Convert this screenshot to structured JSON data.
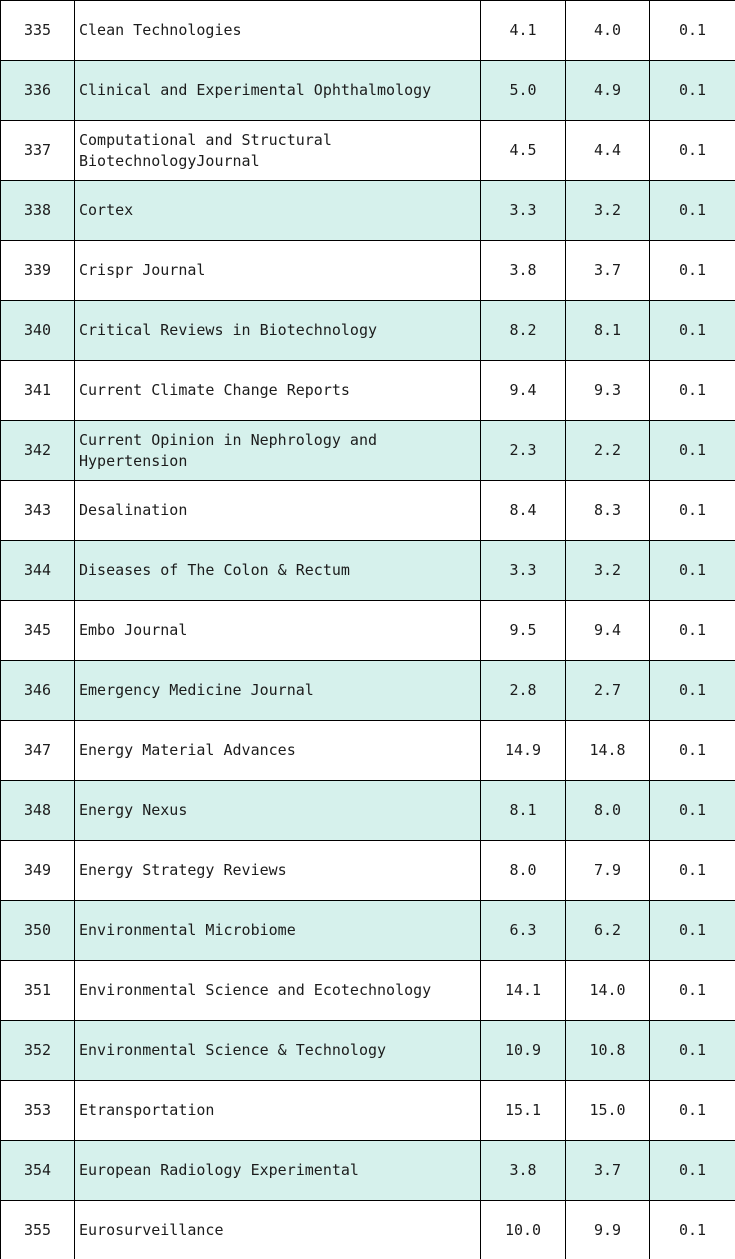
{
  "styles": {
    "row_alternate_bg": "#d6f1ec",
    "row_plain_bg": "#ffffff",
    "border_color": "#000000",
    "text_color": "#1c1c1c"
  },
  "chart_data": {
    "type": "table",
    "header_visible": false,
    "columns_visible": 5,
    "rows": [
      {
        "no": "335",
        "journal": "Clean Technologies",
        "value1": "4.1",
        "value2": "4.0",
        "value3": "0.1"
      },
      {
        "no": "336",
        "journal": "Clinical and Experimental Ophthalmology",
        "value1": "5.0",
        "value2": "4.9",
        "value3": "0.1"
      },
      {
        "no": "337",
        "journal": "Computational and Structural BiotechnologyJournal",
        "value1": "4.5",
        "value2": "4.4",
        "value3": "0.1"
      },
      {
        "no": "338",
        "journal": "Cortex",
        "value1": "3.3",
        "value2": "3.2",
        "value3": "0.1"
      },
      {
        "no": "339",
        "journal": "Crispr Journal",
        "value1": "3.8",
        "value2": "3.7",
        "value3": "0.1"
      },
      {
        "no": "340",
        "journal": "Critical Reviews in Biotechnology",
        "value1": "8.2",
        "value2": "8.1",
        "value3": "0.1"
      },
      {
        "no": "341",
        "journal": "Current Climate Change Reports",
        "value1": "9.4",
        "value2": "9.3",
        "value3": "0.1"
      },
      {
        "no": "342",
        "journal": "Current Opinion in Nephrology and Hypertension",
        "value1": "2.3",
        "value2": "2.2",
        "value3": "0.1"
      },
      {
        "no": "343",
        "journal": "Desalination",
        "value1": "8.4",
        "value2": "8.3",
        "value3": "0.1"
      },
      {
        "no": "344",
        "journal": "Diseases of The Colon & Rectum",
        "value1": "3.3",
        "value2": "3.2",
        "value3": "0.1"
      },
      {
        "no": "345",
        "journal": "Embo Journal",
        "value1": "9.5",
        "value2": "9.4",
        "value3": "0.1"
      },
      {
        "no": "346",
        "journal": "Emergency Medicine Journal",
        "value1": "2.8",
        "value2": "2.7",
        "value3": "0.1"
      },
      {
        "no": "347",
        "journal": "Energy Material Advances",
        "value1": "14.9",
        "value2": "14.8",
        "value3": "0.1"
      },
      {
        "no": "348",
        "journal": "Energy Nexus",
        "value1": "8.1",
        "value2": "8.0",
        "value3": "0.1"
      },
      {
        "no": "349",
        "journal": "Energy Strategy Reviews",
        "value1": "8.0",
        "value2": "7.9",
        "value3": "0.1"
      },
      {
        "no": "350",
        "journal": "Environmental Microbiome",
        "value1": "6.3",
        "value2": "6.2",
        "value3": "0.1"
      },
      {
        "no": "351",
        "journal": "Environmental Science and Ecotechnology",
        "value1": "14.1",
        "value2": "14.0",
        "value3": "0.1"
      },
      {
        "no": "352",
        "journal": "Environmental Science & Technology",
        "value1": "10.9",
        "value2": "10.8",
        "value3": "0.1"
      },
      {
        "no": "353",
        "journal": "Etransportation",
        "value1": "15.1",
        "value2": "15.0",
        "value3": "0.1"
      },
      {
        "no": "354",
        "journal": "European Radiology Experimental",
        "value1": "3.8",
        "value2": "3.7",
        "value3": "0.1"
      },
      {
        "no": "355",
        "journal": "Eurosurveillance",
        "value1": "10.0",
        "value2": "9.9",
        "value3": "0.1"
      }
    ]
  }
}
